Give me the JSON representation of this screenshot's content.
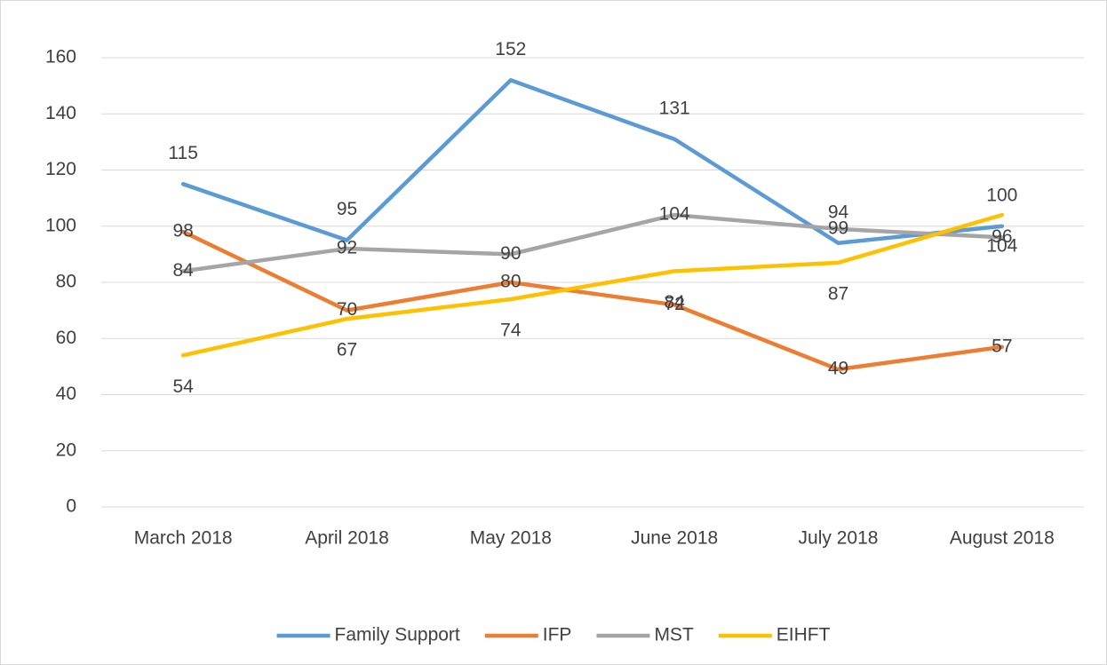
{
  "chart_data": {
    "type": "line",
    "categories": [
      "March 2018",
      "April 2018",
      "May 2018",
      "June 2018",
      "July 2018",
      "August 2018"
    ],
    "series": [
      {
        "name": "Family Support",
        "color": "#5b9bd5",
        "values": [
          115,
          95,
          152,
          131,
          94,
          100
        ]
      },
      {
        "name": "IFP",
        "color": "#ed7d31",
        "values": [
          98,
          70,
          80,
          72,
          49,
          57
        ]
      },
      {
        "name": "MST",
        "color": "#a5a5a5",
        "values": [
          84,
          92,
          90,
          104,
          99,
          96
        ]
      },
      {
        "name": "EIHFT",
        "color": "#ffc000",
        "values": [
          54,
          67,
          74,
          84,
          87,
          104
        ]
      }
    ],
    "ylim": [
      0,
      160
    ],
    "yticks": [
      0,
      20,
      40,
      60,
      80,
      100,
      120,
      140,
      160
    ],
    "grid": true,
    "data_labels": true,
    "legend": "bottom"
  }
}
